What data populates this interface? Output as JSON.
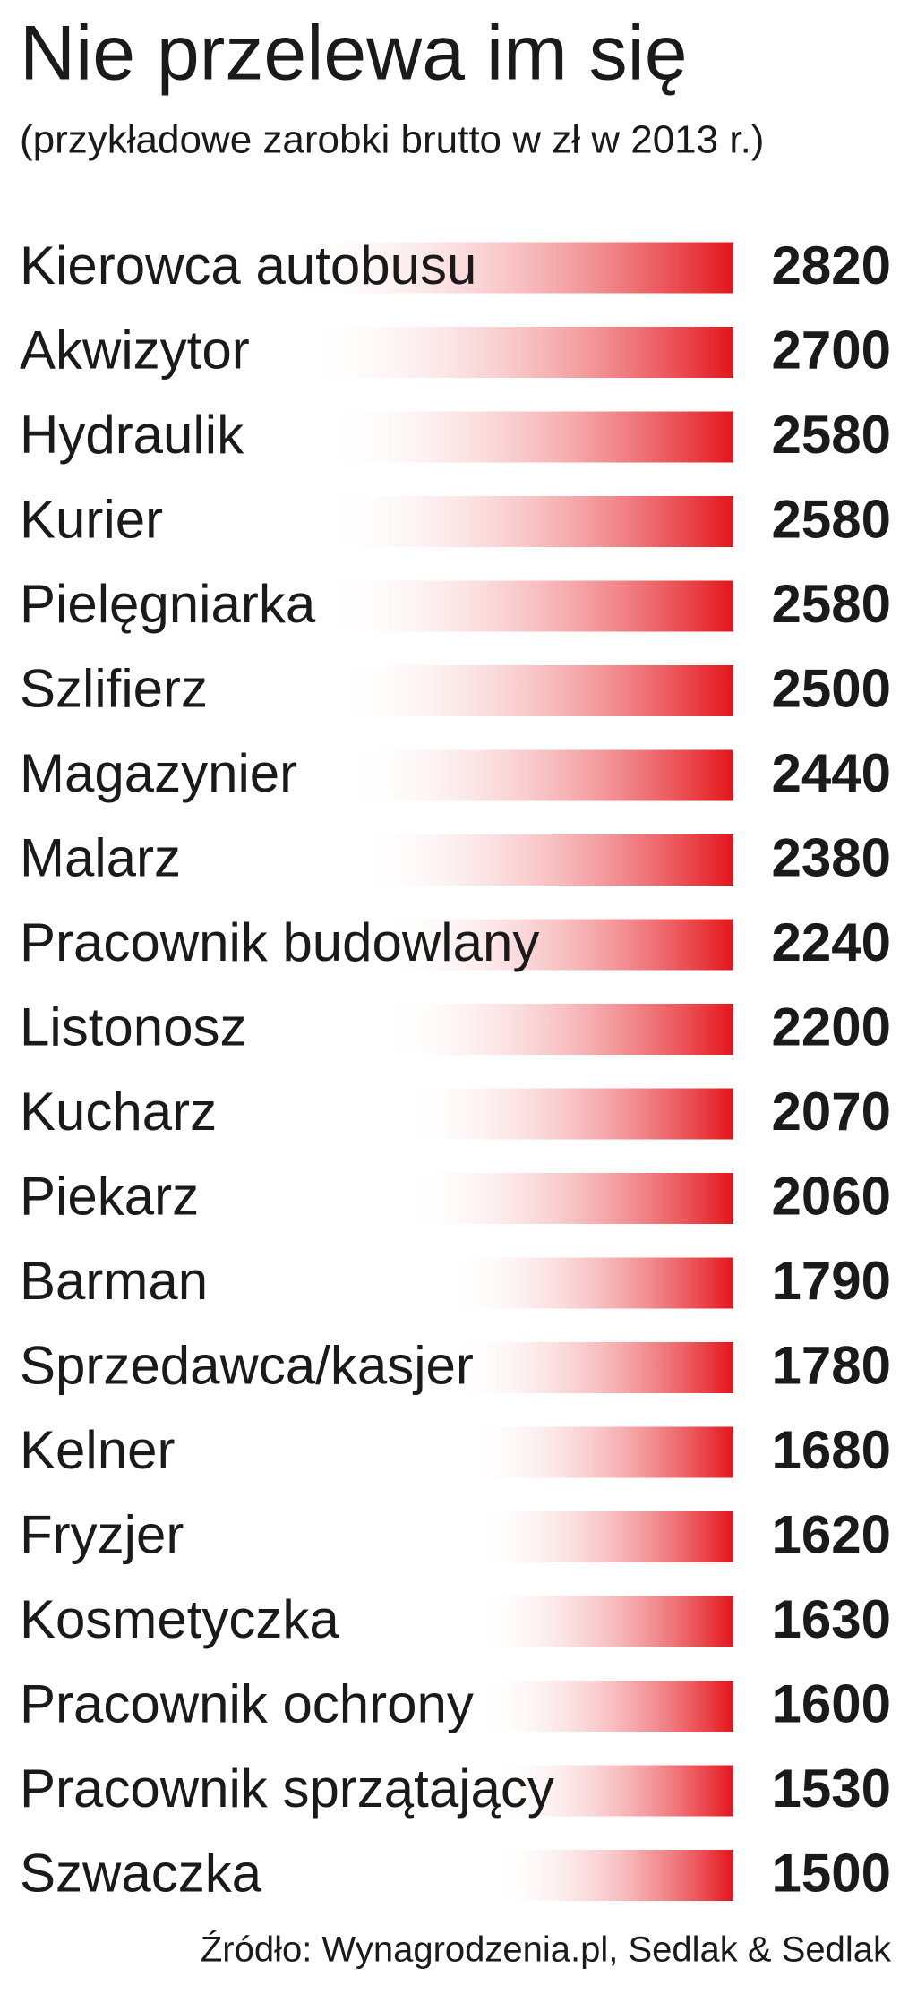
{
  "chart_data": {
    "type": "bar",
    "title": "Nie przelewa im się",
    "subtitle": "(przykładowe zarobki brutto w zł w 2013 r.)",
    "categories": [
      "Kierowca autobusu",
      "Akwizytor",
      "Hydraulik",
      "Kurier",
      "Pielęgniarka",
      "Szlifierz",
      "Magazynier",
      "Malarz",
      "Pracownik budowlany",
      "Listonosz",
      "Kucharz",
      "Piekarz",
      "Barman",
      "Sprzedawca/kasjer",
      "Kelner",
      "Fryzjer",
      "Kosmetyczka",
      "Pracownik ochrony",
      "Pracownik sprzątający",
      "Szwaczka"
    ],
    "values": [
      2820,
      2700,
      2580,
      2580,
      2580,
      2500,
      2440,
      2380,
      2240,
      2200,
      2070,
      2060,
      1790,
      1780,
      1680,
      1620,
      1630,
      1600,
      1530,
      1500
    ],
    "color": "#e3141b",
    "source": "Źródło: Wynagrodzenia.pl, Sedlak & Sedlak"
  }
}
